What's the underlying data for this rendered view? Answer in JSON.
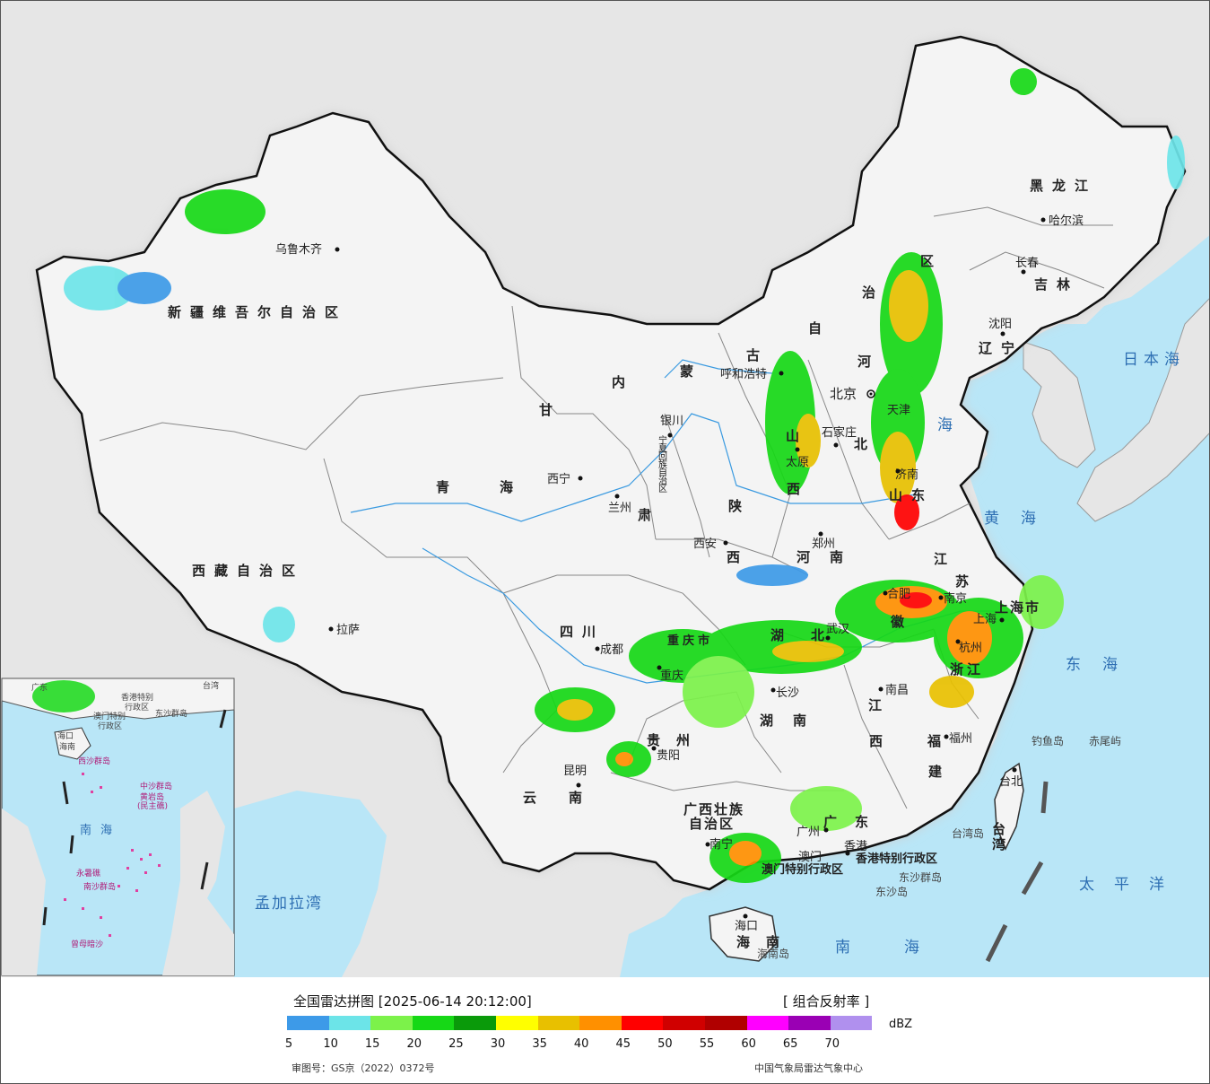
{
  "legend": {
    "title": "全国雷达拼图 [2025-06-14 20:12:00]",
    "product": "[ 组合反射率 ]",
    "unit": "dBZ",
    "colors": [
      "#3d9ae8",
      "#6ce4e8",
      "#7cf24a",
      "#16d816",
      "#0a9a0a",
      "#ffff00",
      "#e8c000",
      "#ff9000",
      "#ff0000",
      "#d00000",
      "#b00000",
      "#ff00ff",
      "#9a00b4",
      "#b090ee"
    ],
    "ticks": [
      "5",
      "10",
      "15",
      "20",
      "25",
      "30",
      "35",
      "40",
      "45",
      "50",
      "55",
      "60",
      "65",
      "70"
    ],
    "review_no": "审图号：GS京（2022）0372号",
    "producer": "中国气象局雷达气象中心"
  },
  "map": {
    "colors": {
      "land": "#f4f4f4",
      "ocean": "#b9e6f7",
      "foreign": "#e6e6e6",
      "border": "#111111",
      "province": "#888888"
    },
    "provinces": {
      "xinjiang": "新疆维吾尔自治区",
      "xizang": "西藏自治区",
      "qinghai_1": "青",
      "qinghai_2": "海",
      "gansu_1": "甘",
      "gansu_2": "肃",
      "neimenggu_1": "内",
      "neimenggu_2": "蒙",
      "neimenggu_3": "古",
      "neimenggu_4": "自",
      "neimenggu_5": "治",
      "neimenggu_6": "区",
      "neimenggu_7": "河",
      "heilongjiang": "黑龙江",
      "jilin": "吉林",
      "liaoning": "辽宁",
      "hebei": "北",
      "shanxi_1": "山",
      "shanxi_2": "西",
      "shandong": "山东",
      "henan_1": "河",
      "henan_2": "南",
      "shaanxi_1": "陕",
      "shaanxi_2": "西",
      "ningxia": "宁夏回族自治区",
      "sichuan": "四川",
      "chongqing": "重庆市",
      "hubei_1": "湖",
      "hubei_2": "北",
      "hunan": "湖南",
      "jiangxi_1": "江",
      "jiangxi_2": "西",
      "anhui": "徽",
      "jiangsu_1": "江",
      "jiangsu_2": "苏",
      "zhejiang": "浙江",
      "shanghai": "上海市",
      "fujian_1": "福",
      "fujian_2": "建",
      "guizhou": "贵州",
      "yunnan": "云南",
      "guangxi_1": "广西壮族",
      "guangxi_2": "自治区",
      "guangdong": "广东",
      "hainan": "海南",
      "taiwan": "台湾",
      "tianjin": "天津"
    },
    "cities": {
      "urumqi": "乌鲁木齐",
      "lhasa": "拉萨",
      "xining": "西宁",
      "lanzhou": "兰州",
      "yinchuan": "银川",
      "hohhot": "呼和浩特",
      "beijing": "北京",
      "shijiazhuang": "石家庄",
      "taiyuan": "太原",
      "jinan": "济南",
      "zhengzhou": "郑州",
      "xian": "西安",
      "chengdu": "成都",
      "chongqing": "重庆",
      "wuhan": "武汉",
      "hefei": "合肥",
      "nanjing": "南京",
      "shanghai": "上海",
      "hangzhou": "杭州",
      "changsha": "长沙",
      "nanchang": "南昌",
      "fuzhou": "福州",
      "taibei": "台北",
      "guiyang": "贵阳",
      "kunming": "昆明",
      "nanning": "南宁",
      "guangzhou": "广州",
      "hongkong": "香港",
      "macau": "澳门",
      "haikou": "海口",
      "shenyang": "沈阳",
      "changchun": "长春",
      "harbin": "哈尔滨"
    },
    "special": {
      "hk_sar": "香港特别行政区",
      "mo_sar": "澳门特别行政区"
    },
    "seas": {
      "bohai": "海",
      "yellow": "黄海",
      "east": "东海",
      "south": "南海",
      "pacific": "太平洋",
      "japan": "日本海",
      "bengal": "孟加拉湾"
    },
    "islands": {
      "diaoyu": "钓鱼岛",
      "chiwei": "赤尾屿",
      "dongsha": "东沙群岛",
      "dongsha2": "东沙岛",
      "hainan_isl": "海南岛",
      "taiwan_isl": "台湾岛"
    },
    "inset": {
      "south_sea": "南海",
      "hainan": "海南",
      "haikou": "海口",
      "xisha": "西沙群岛",
      "zhongsha": "中沙群岛",
      "huangyan": "黄岩岛",
      "minzhu": "(民主礁)",
      "nansha": "南沙群岛",
      "yongshu": "永暑礁",
      "zengmu": "曾母暗沙",
      "dongsha": "东沙群岛",
      "hk": "香港特别",
      "hk2": "行政区",
      "mo": "澳门特别",
      "mo2": "行政区",
      "guangdong": "广东",
      "taiwan": "台湾"
    }
  }
}
